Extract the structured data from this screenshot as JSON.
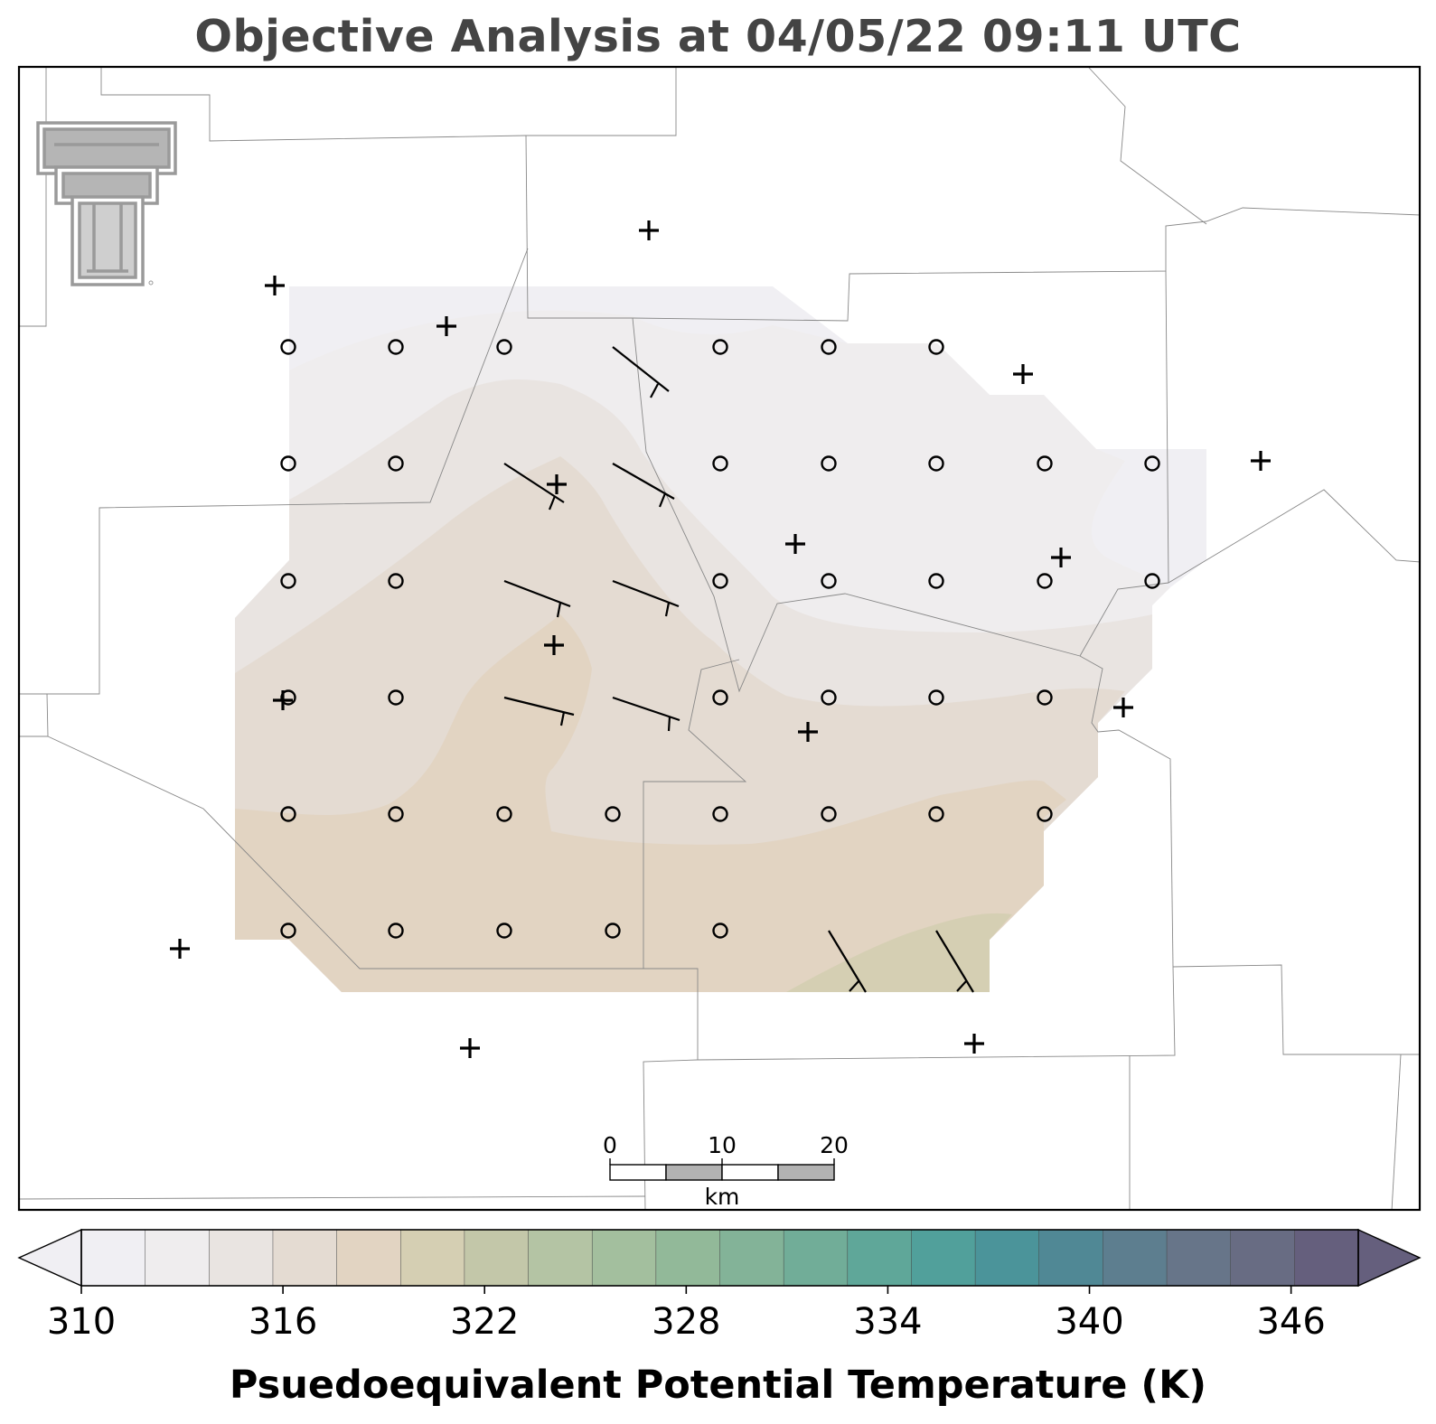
{
  "title": "Objective Analysis at 04/05/22 09:11 UTC",
  "colorbar": {
    "label": "Psuedoequivalent Potential Temperature (K)",
    "min": 310,
    "max": 348,
    "step": 2,
    "tick_values": [
      310,
      316,
      322,
      328,
      334,
      340,
      346
    ],
    "tick_labels": [
      "310",
      "316",
      "322",
      "328",
      "334",
      "340",
      "346"
    ],
    "colors": [
      "#f0eff3",
      "#efedee",
      "#e9e4e1",
      "#e4dbd2",
      "#e2d4c2",
      "#d5cfb3",
      "#c3c7a9",
      "#b4c4a4",
      "#a3bf9e",
      "#92b999",
      "#83b398",
      "#71ad98",
      "#5fa799",
      "#51a09b",
      "#4b949a",
      "#508895",
      "#5d7e8f",
      "#677589",
      "#686c83",
      "#655f7d"
    ],
    "extend": "both"
  },
  "scale_bar": {
    "labels": [
      "0",
      "10",
      "20"
    ],
    "unit": "km"
  },
  "logo": "texas-tech-double-t-logo",
  "legend_symbols": {
    "station": "plus",
    "calm": "circle",
    "wind": "barb"
  }
}
